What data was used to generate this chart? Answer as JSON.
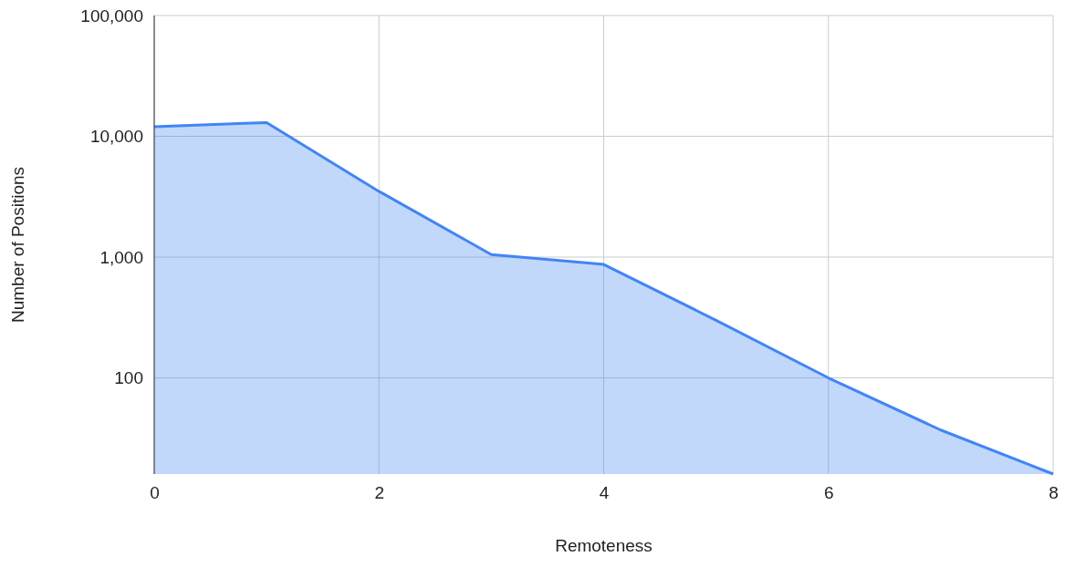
{
  "chart_data": {
    "type": "area",
    "xlabel": "Remoteness",
    "ylabel": "Number of Positions",
    "x": [
      0,
      1,
      2,
      3,
      4,
      5,
      6,
      7,
      8
    ],
    "series": [
      {
        "color": "#4285f4",
        "values": [
          12000,
          13000,
          3500,
          1050,
          870,
          300,
          100,
          37,
          16
        ]
      }
    ],
    "xlim": [
      0,
      8
    ],
    "xticks": [
      0,
      2,
      4,
      6,
      8
    ],
    "ylim": [
      16,
      100000
    ],
    "yticks": [
      {
        "value": 100,
        "label": "100"
      },
      {
        "value": 1000,
        "label": "1,000"
      },
      {
        "value": 10000,
        "label": "10,000"
      },
      {
        "value": 100000,
        "label": "100,000"
      }
    ],
    "log": true,
    "grid": true
  }
}
